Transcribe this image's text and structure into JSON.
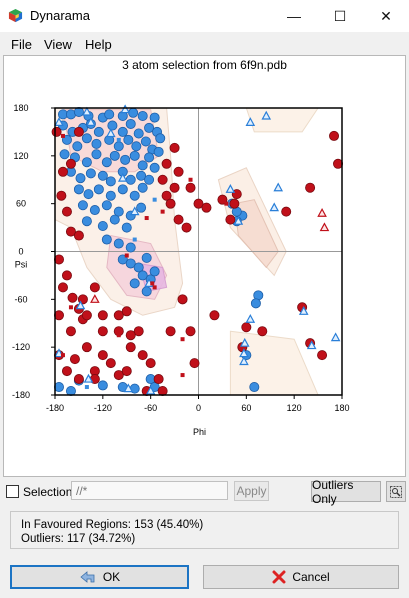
{
  "window": {
    "title": "Dynarama",
    "minimize_glyph": "—",
    "maximize_glyph": "☐",
    "close_glyph": "✕"
  },
  "menu": [
    {
      "label": "File"
    },
    {
      "label": "View"
    },
    {
      "label": "Help"
    }
  ],
  "plot_title": "3 atom selection from 6f9n.pdb",
  "selection": {
    "label": "Selection",
    "placeholder": "//*",
    "apply_label": "Apply",
    "outliers_label": "Outliers Only",
    "checked": false
  },
  "stats": {
    "favoured": "In Favoured Regions:  153  (45.40%)",
    "outliers": "Outliers:  117  (34.72%)"
  },
  "buttons": {
    "ok": "OK",
    "cancel": "Cancel"
  },
  "colors": {
    "favoured": "#3a8ddf",
    "outlier": "#c0101a",
    "outline_blue": "#2a7fd8",
    "region_fill": "#f8e4d4"
  },
  "icons": {
    "app": "dynarama-cube-icon",
    "ok": "back-arrow-icon",
    "cancel": "red-x-icon",
    "zoom": "zoom-icon"
  },
  "chart_data": {
    "type": "scatter",
    "xlabel": "Phi",
    "ylabel": "Psi",
    "xlim": [
      -180,
      180
    ],
    "ylim": [
      -180,
      180
    ],
    "xticks": [
      -180,
      -120,
      -60,
      0,
      60,
      120,
      180
    ],
    "yticks": [
      180,
      120,
      60,
      0,
      -60,
      -120,
      -180
    ],
    "grid": "crosshair at 0",
    "series": [
      {
        "marker": "circle-blue",
        "points": [
          [
            -170,
            172
          ],
          [
            -160,
            172
          ],
          [
            -150,
            175
          ],
          [
            -138,
            170
          ],
          [
            -120,
            168
          ],
          [
            -112,
            172
          ],
          [
            -95,
            170
          ],
          [
            -82,
            174
          ],
          [
            -70,
            170
          ],
          [
            -55,
            168
          ],
          [
            -170,
            158
          ],
          [
            -158,
            150
          ],
          [
            -145,
            155
          ],
          [
            -135,
            160
          ],
          [
            -125,
            150
          ],
          [
            -108,
            158
          ],
          [
            -95,
            150
          ],
          [
            -85,
            160
          ],
          [
            -75,
            148
          ],
          [
            -62,
            155
          ],
          [
            -52,
            150
          ],
          [
            -48,
            142
          ],
          [
            -165,
            140
          ],
          [
            -152,
            132
          ],
          [
            -140,
            142
          ],
          [
            -128,
            135
          ],
          [
            -112,
            140
          ],
          [
            -100,
            132
          ],
          [
            -88,
            140
          ],
          [
            -78,
            132
          ],
          [
            -66,
            138
          ],
          [
            -58,
            128
          ],
          [
            -50,
            125
          ],
          [
            -168,
            122
          ],
          [
            -155,
            118
          ],
          [
            -140,
            112
          ],
          [
            -128,
            122
          ],
          [
            -115,
            112
          ],
          [
            -105,
            120
          ],
          [
            -92,
            115
          ],
          [
            -80,
            120
          ],
          [
            -70,
            108
          ],
          [
            -62,
            118
          ],
          [
            -55,
            105
          ],
          [
            -160,
            100
          ],
          [
            -148,
            92
          ],
          [
            -135,
            98
          ],
          [
            -120,
            95
          ],
          [
            -110,
            88
          ],
          [
            -95,
            100
          ],
          [
            -85,
            90
          ],
          [
            -72,
            95
          ],
          [
            -62,
            90
          ],
          [
            -150,
            78
          ],
          [
            -138,
            72
          ],
          [
            -125,
            78
          ],
          [
            -110,
            70
          ],
          [
            -95,
            78
          ],
          [
            -80,
            70
          ],
          [
            -70,
            80
          ],
          [
            -145,
            58
          ],
          [
            -130,
            52
          ],
          [
            -115,
            58
          ],
          [
            -100,
            50
          ],
          [
            -85,
            45
          ],
          [
            -72,
            55
          ],
          [
            -140,
            38
          ],
          [
            -120,
            32
          ],
          [
            -105,
            40
          ],
          [
            -90,
            30
          ],
          [
            -115,
            15
          ],
          [
            -100,
            10
          ],
          [
            -85,
            5
          ],
          [
            -95,
            -10
          ],
          [
            -85,
            -15
          ],
          [
            -75,
            -20
          ],
          [
            -65,
            -8
          ],
          [
            -70,
            -30
          ],
          [
            -60,
            -35
          ],
          [
            -80,
            -40
          ],
          [
            -55,
            -25
          ],
          [
            -65,
            -50
          ],
          [
            -175,
            -170
          ],
          [
            -160,
            -175
          ],
          [
            -120,
            -168
          ],
          [
            -95,
            -170
          ],
          [
            -80,
            -172
          ],
          [
            -60,
            -160
          ],
          [
            -55,
            -170
          ],
          [
            -150,
            -162
          ],
          [
            55,
            45
          ],
          [
            48,
            50
          ],
          [
            42,
            60
          ],
          [
            48,
            38
          ],
          [
            75,
            -55
          ],
          [
            72,
            -65
          ],
          [
            60,
            -130
          ],
          [
            70,
            -170
          ]
        ]
      },
      {
        "marker": "circle-red",
        "points": [
          [
            -178,
            150
          ],
          [
            -170,
            100
          ],
          [
            -172,
            70
          ],
          [
            -165,
            50
          ],
          [
            -160,
            25
          ],
          [
            -150,
            20
          ],
          [
            -175,
            -10
          ],
          [
            -165,
            -30
          ],
          [
            -170,
            -45
          ],
          [
            -158,
            -58
          ],
          [
            -150,
            -72
          ],
          [
            -145,
            -85
          ],
          [
            -160,
            -100
          ],
          [
            -140,
            -120
          ],
          [
            -155,
            -135
          ],
          [
            -165,
            -150
          ],
          [
            -150,
            -160
          ],
          [
            -130,
            -150
          ],
          [
            -120,
            -130
          ],
          [
            -110,
            -140
          ],
          [
            -100,
            -155
          ],
          [
            -90,
            -150
          ],
          [
            -85,
            -120
          ],
          [
            -75,
            -100
          ],
          [
            -70,
            -130
          ],
          [
            -60,
            -140
          ],
          [
            -50,
            -160
          ],
          [
            -45,
            -175
          ],
          [
            -65,
            -175
          ],
          [
            -30,
            130
          ],
          [
            -25,
            100
          ],
          [
            -40,
            70
          ],
          [
            -30,
            80
          ],
          [
            -10,
            80
          ],
          [
            0,
            60
          ],
          [
            10,
            55
          ],
          [
            30,
            65
          ],
          [
            45,
            60
          ],
          [
            40,
            40
          ],
          [
            48,
            72
          ],
          [
            110,
            50
          ],
          [
            140,
            80
          ],
          [
            130,
            -70
          ],
          [
            140,
            -115
          ],
          [
            155,
            -130
          ],
          [
            170,
            145
          ],
          [
            175,
            110
          ],
          [
            60,
            -95
          ],
          [
            55,
            -120
          ],
          [
            -100,
            -100
          ],
          [
            -120,
            -100
          ],
          [
            -130,
            -160
          ],
          [
            -175,
            -130
          ],
          [
            -175,
            -80
          ],
          [
            -130,
            -45
          ],
          [
            -145,
            -60
          ],
          [
            -40,
            110
          ],
          [
            -45,
            90
          ],
          [
            -35,
            60
          ],
          [
            -25,
            40
          ],
          [
            -15,
            30
          ],
          [
            -160,
            110
          ],
          [
            -150,
            150
          ],
          [
            -140,
            -80
          ],
          [
            -120,
            -80
          ],
          [
            -100,
            -80
          ],
          [
            -90,
            -75
          ],
          [
            -20,
            -60
          ],
          [
            20,
            -80
          ],
          [
            -10,
            -100
          ],
          [
            -5,
            -140
          ],
          [
            80,
            -100
          ],
          [
            -35,
            -100
          ],
          [
            -85,
            -105
          ]
        ]
      },
      {
        "marker": "triangle-blue",
        "points": [
          [
            -175,
            162
          ],
          [
            -140,
            175
          ],
          [
            -92,
            178
          ],
          [
            -135,
            162
          ],
          [
            -110,
            148
          ],
          [
            -95,
            92
          ],
          [
            -80,
            50
          ],
          [
            -62,
            -40
          ],
          [
            65,
            162
          ],
          [
            85,
            170
          ],
          [
            40,
            78
          ],
          [
            50,
            38
          ],
          [
            100,
            80
          ],
          [
            95,
            55
          ],
          [
            132,
            -75
          ],
          [
            65,
            -85
          ],
          [
            57,
            -128
          ],
          [
            58,
            -115
          ],
          [
            57,
            -138
          ],
          [
            142,
            -118
          ],
          [
            172,
            -108
          ],
          [
            -175,
            -128
          ],
          [
            -138,
            -160
          ],
          [
            -88,
            -172
          ],
          [
            -60,
            -175
          ],
          [
            -148,
            -68
          ]
        ]
      },
      {
        "marker": "triangle-red",
        "points": [
          [
            -130,
            -60
          ],
          [
            155,
            48
          ],
          [
            158,
            30
          ]
        ]
      },
      {
        "marker": "square-red",
        "points": [
          [
            -170,
            145
          ],
          [
            -10,
            90
          ],
          [
            35,
            60
          ],
          [
            -170,
            -130
          ],
          [
            -160,
            -70
          ],
          [
            -55,
            -45
          ],
          [
            -20,
            -155
          ],
          [
            -100,
            -105
          ],
          [
            -130,
            -160
          ],
          [
            -45,
            50
          ],
          [
            -65,
            42
          ],
          [
            -90,
            -5
          ],
          [
            -58,
            -40
          ],
          [
            -20,
            -110
          ]
        ]
      },
      {
        "marker": "square-blue",
        "points": [
          [
            -100,
            140
          ],
          [
            -140,
            -170
          ],
          [
            -80,
            15
          ],
          [
            -55,
            65
          ]
        ]
      }
    ]
  }
}
